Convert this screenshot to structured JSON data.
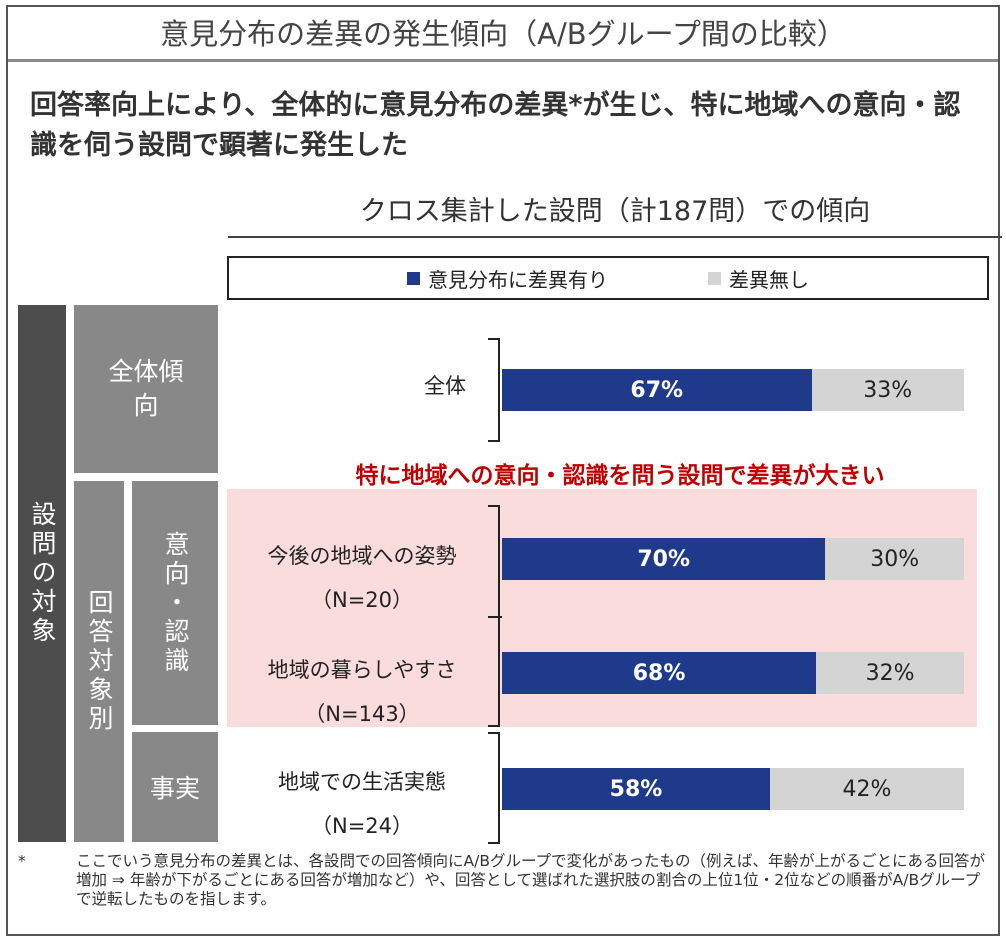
{
  "title": "意見分布の差異の発生傾向（A/Bグループ間の比較）",
  "headline": "回答率向上により、全体的に意見分布の差異*が生じ、特に地域への意向・認識を伺う設問で顕著に発生した",
  "subtitle": "クロス集計した設問（計187問）での傾向",
  "legend": {
    "yes_label": "意見分布に差異有り",
    "no_label": "差異無し"
  },
  "colors": {
    "yes": "#1f3a8a",
    "no": "#d4d4d4",
    "highlight_bg": "#fbdcdc",
    "highlight_text": "#c00000"
  },
  "side": {
    "outer_label": "設問の対象",
    "overall_label": "全体傾向",
    "by_target_label": "回答対象別",
    "intent_label": "意向・認識",
    "fact_label": "事実"
  },
  "highlight_note": "特に地域への意向・認識を問う設問で差異が大きい",
  "chart_data": {
    "type": "bar",
    "orientation": "horizontal",
    "stacked": true,
    "percent": true,
    "categories": [
      "全体",
      "今後の地域への姿勢",
      "地域の暮らしやすさ",
      "地域での生活実態"
    ],
    "category_n": [
      "",
      "（N=20）",
      "（N=143）",
      "（N=24）"
    ],
    "series": [
      {
        "name": "意見分布に差異有り",
        "values": [
          67,
          70,
          68,
          58
        ]
      },
      {
        "name": "差異無し",
        "values": [
          33,
          30,
          32,
          42
        ]
      }
    ],
    "value_labels": {
      "yes": [
        "67%",
        "70%",
        "68%",
        "58%"
      ],
      "no": [
        "33%",
        "30%",
        "32%",
        "42%"
      ]
    },
    "xlim": [
      0,
      100
    ],
    "legend_position": "top"
  },
  "footnote": {
    "mark": "*",
    "text": "ここでいう意見分布の差異とは、各設問での回答傾向にA/Bグループで変化があったもの（例えば、年齢が上がるごとにある回答が増加 ⇒ 年齢が下がるごとにある回答が増加など）や、回答として選ばれた選択肢の割合の上位1位・2位などの順番がA/Bグループで逆転したものを指します。"
  }
}
